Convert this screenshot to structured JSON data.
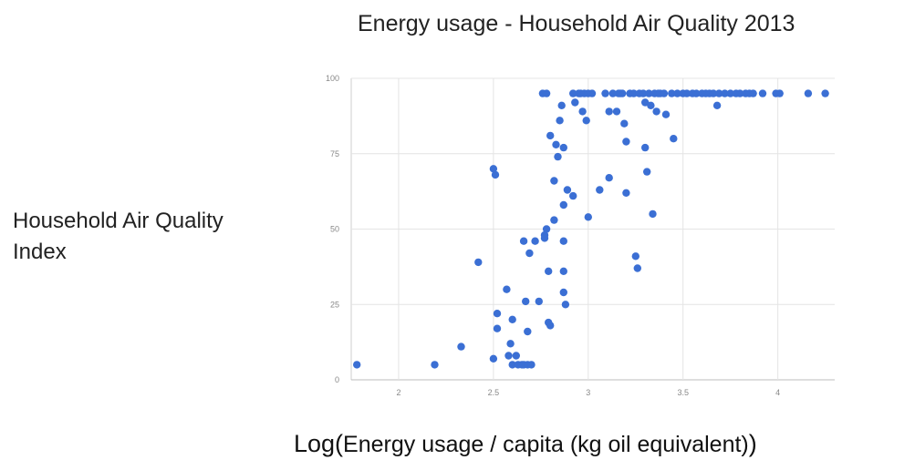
{
  "chart_data": {
    "type": "scatter",
    "title": "Energy usage - Household Air Quality 2013",
    "ylabel_lines": [
      "Household Air Quality",
      "Index"
    ],
    "xlabel_prefix": "Log(",
    "xlabel_main": "Energy usage / capita (kg oil equivalent)",
    "xlabel_suffix": ")",
    "xlim": [
      1.75,
      4.3
    ],
    "ylim": [
      0,
      100
    ],
    "x_ticks": [
      "2",
      "2.5",
      "3",
      "3.5",
      "4"
    ],
    "y_ticks": [
      "0",
      "25",
      "50",
      "75",
      "100"
    ],
    "grid": true,
    "color": "#3b6fd4",
    "points": [
      [
        1.78,
        5
      ],
      [
        2.19,
        5
      ],
      [
        2.33,
        11
      ],
      [
        2.42,
        39
      ],
      [
        2.5,
        70
      ],
      [
        2.51,
        68
      ],
      [
        2.5,
        7
      ],
      [
        2.52,
        22
      ],
      [
        2.52,
        17
      ],
      [
        2.57,
        30
      ],
      [
        2.59,
        12
      ],
      [
        2.6,
        20
      ],
      [
        2.58,
        8
      ],
      [
        2.6,
        5
      ],
      [
        2.62,
        8
      ],
      [
        2.63,
        5
      ],
      [
        2.65,
        5
      ],
      [
        2.66,
        5
      ],
      [
        2.68,
        5
      ],
      [
        2.7,
        5
      ],
      [
        2.66,
        46
      ],
      [
        2.67,
        26
      ],
      [
        2.68,
        16
      ],
      [
        2.69,
        42
      ],
      [
        2.72,
        46
      ],
      [
        2.74,
        26
      ],
      [
        2.76,
        95
      ],
      [
        2.78,
        95
      ],
      [
        2.77,
        48
      ],
      [
        2.78,
        50
      ],
      [
        2.77,
        47
      ],
      [
        2.79,
        36
      ],
      [
        2.79,
        19
      ],
      [
        2.8,
        18
      ],
      [
        2.8,
        81
      ],
      [
        2.82,
        53
      ],
      [
        2.82,
        66
      ],
      [
        2.83,
        78
      ],
      [
        2.84,
        74
      ],
      [
        2.85,
        86
      ],
      [
        2.86,
        91
      ],
      [
        2.87,
        77
      ],
      [
        2.87,
        58
      ],
      [
        2.87,
        46
      ],
      [
        2.87,
        36
      ],
      [
        2.87,
        29
      ],
      [
        2.88,
        25
      ],
      [
        2.89,
        63
      ],
      [
        2.92,
        95
      ],
      [
        2.92,
        61
      ],
      [
        2.93,
        92
      ],
      [
        2.95,
        95
      ],
      [
        2.96,
        95
      ],
      [
        2.97,
        89
      ],
      [
        2.98,
        95
      ],
      [
        2.99,
        86
      ],
      [
        3.0,
        95
      ],
      [
        3.0,
        54
      ],
      [
        3.02,
        95
      ],
      [
        3.06,
        63
      ],
      [
        3.09,
        95
      ],
      [
        3.11,
        89
      ],
      [
        3.11,
        67
      ],
      [
        3.13,
        95
      ],
      [
        3.15,
        89
      ],
      [
        3.16,
        95
      ],
      [
        3.17,
        95
      ],
      [
        3.18,
        95
      ],
      [
        3.19,
        85
      ],
      [
        3.2,
        62
      ],
      [
        3.2,
        79
      ],
      [
        3.22,
        95
      ],
      [
        3.24,
        95
      ],
      [
        3.25,
        41
      ],
      [
        3.26,
        37
      ],
      [
        3.27,
        95
      ],
      [
        3.29,
        95
      ],
      [
        3.3,
        92
      ],
      [
        3.3,
        77
      ],
      [
        3.31,
        69
      ],
      [
        3.32,
        95
      ],
      [
        3.33,
        91
      ],
      [
        3.34,
        55
      ],
      [
        3.35,
        95
      ],
      [
        3.36,
        89
      ],
      [
        3.37,
        95
      ],
      [
        3.38,
        95
      ],
      [
        3.4,
        95
      ],
      [
        3.41,
        88
      ],
      [
        3.44,
        95
      ],
      [
        3.45,
        80
      ],
      [
        3.47,
        95
      ],
      [
        3.5,
        95
      ],
      [
        3.52,
        95
      ],
      [
        3.55,
        95
      ],
      [
        3.57,
        95
      ],
      [
        3.6,
        95
      ],
      [
        3.62,
        95
      ],
      [
        3.64,
        95
      ],
      [
        3.66,
        95
      ],
      [
        3.68,
        91
      ],
      [
        3.69,
        95
      ],
      [
        3.72,
        95
      ],
      [
        3.75,
        95
      ],
      [
        3.78,
        95
      ],
      [
        3.8,
        95
      ],
      [
        3.83,
        95
      ],
      [
        3.85,
        95
      ],
      [
        3.87,
        95
      ],
      [
        3.92,
        95
      ],
      [
        3.99,
        95
      ],
      [
        4.01,
        95
      ],
      [
        4.16,
        95
      ],
      [
        4.25,
        95
      ]
    ]
  }
}
